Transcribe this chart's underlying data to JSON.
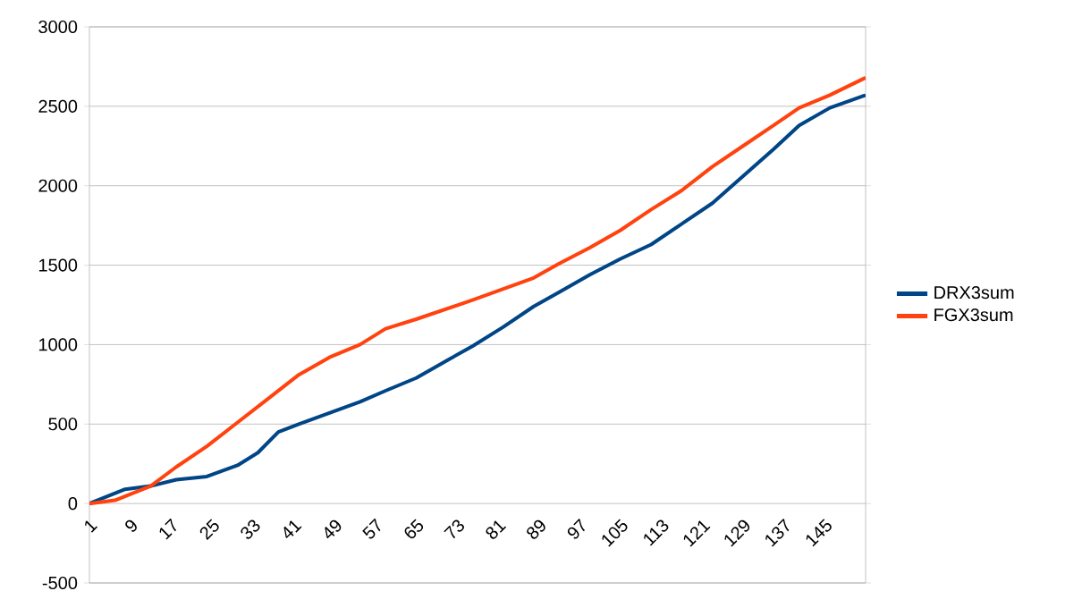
{
  "chart_data": {
    "type": "line",
    "xlim": [
      1,
      153
    ],
    "xticks": [
      1,
      9,
      17,
      25,
      33,
      41,
      49,
      57,
      65,
      73,
      81,
      89,
      97,
      105,
      113,
      121,
      129,
      137,
      145
    ],
    "ylim": [
      -500,
      3000
    ],
    "yticks": [
      -500,
      0,
      500,
      1000,
      1500,
      2000,
      2500,
      3000
    ],
    "grid": "y",
    "legend": "right",
    "marker": "none",
    "line_style": "solid",
    "series": [
      {
        "name": "DRX3sum",
        "color": "#004586",
        "x": [
          1,
          8,
          13,
          18,
          24,
          30,
          34,
          38,
          42,
          48,
          54,
          59,
          65,
          71,
          76,
          82,
          88,
          93,
          99,
          105,
          111,
          117,
          123,
          129,
          135,
          140,
          146,
          153
        ],
        "values": [
          0,
          90,
          110,
          150,
          170,
          240,
          320,
          450,
          500,
          570,
          640,
          710,
          790,
          900,
          990,
          1110,
          1240,
          1330,
          1440,
          1540,
          1630,
          1760,
          1890,
          2060,
          2230,
          2380,
          2490,
          2570
        ]
      },
      {
        "name": "FGX3sum",
        "color": "#ff420e",
        "x": [
          1,
          6,
          13,
          18,
          24,
          30,
          36,
          42,
          48,
          54,
          59,
          65,
          76,
          88,
          93,
          99,
          105,
          111,
          117,
          123,
          129,
          135,
          140,
          146,
          153
        ],
        "values": [
          0,
          20,
          110,
          230,
          360,
          510,
          660,
          810,
          920,
          1000,
          1100,
          1160,
          1280,
          1420,
          1510,
          1610,
          1720,
          1850,
          1970,
          2120,
          2250,
          2380,
          2490,
          2570,
          2680
        ]
      }
    ]
  }
}
